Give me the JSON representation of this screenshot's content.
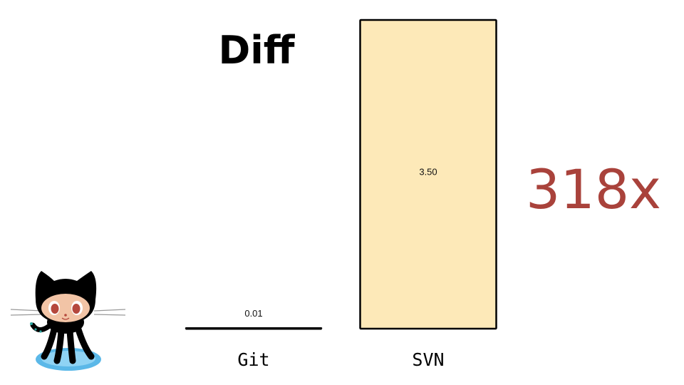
{
  "slide": {
    "title": "Diff",
    "multiplier": "318x",
    "accent_color": "#a9423b"
  },
  "mascot": {
    "icon": "octocat-icon"
  },
  "chart_data": {
    "type": "bar",
    "title": "Diff",
    "categories": [
      "Git",
      "SVN"
    ],
    "values": [
      0.01,
      3.5
    ],
    "value_labels": [
      "0.01",
      "3.50"
    ],
    "bar_color": "#fde9b8",
    "bar_stroke": "#000000",
    "ylim": [
      0,
      3.5
    ],
    "grid": false,
    "xlabel": "",
    "ylabel": ""
  }
}
